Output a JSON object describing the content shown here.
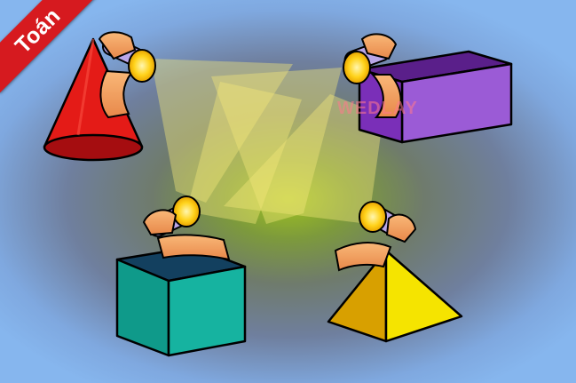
{
  "ribbon": {
    "label": "Toán",
    "color": "#d61a1f"
  },
  "watermark": {
    "text": "WEDLAY"
  },
  "shapes": [
    {
      "id": "cone",
      "color": "#e41b17"
    },
    {
      "id": "rectangular-prism",
      "color": "#9b5bd6"
    },
    {
      "id": "cube",
      "color": "#16b3a0"
    },
    {
      "id": "pyramid",
      "color": "#f5e400"
    }
  ],
  "icons": [
    "flashlight-icon",
    "hand-icon"
  ],
  "colors": {
    "light_beam": "#f4e87a",
    "skin": "#f4a060",
    "flashlight": "#ffd21a"
  }
}
